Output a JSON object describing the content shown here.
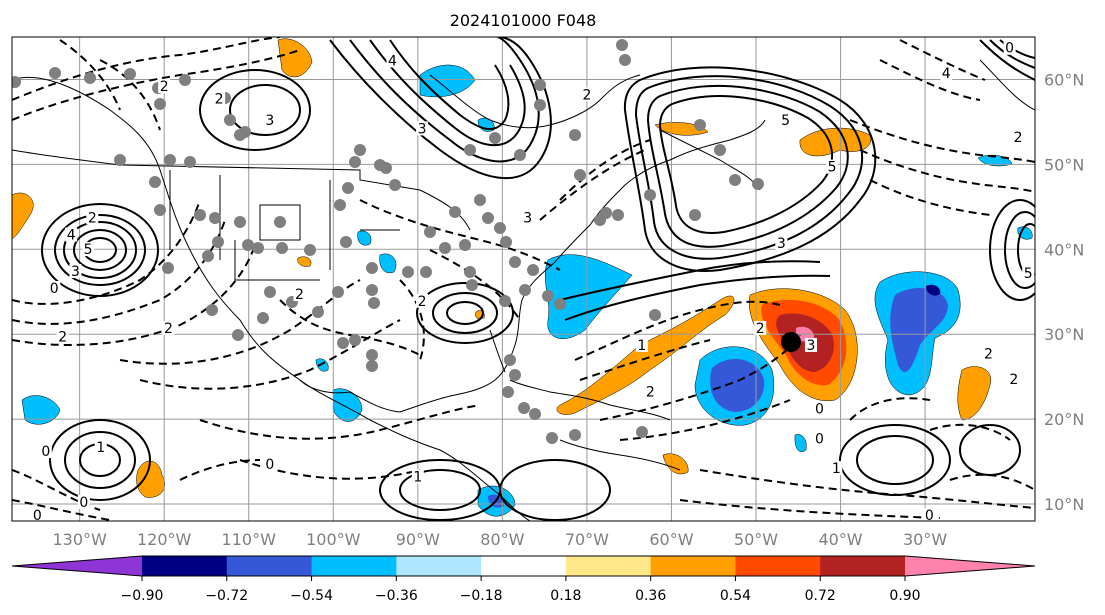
{
  "title": "2024101000 F048",
  "map": {
    "projection": "PlateCarree",
    "lon_range": [
      -138,
      -17
    ],
    "lat_range": [
      8,
      65
    ],
    "lon_ticks": [
      {
        "value": -130,
        "label": "130°W"
      },
      {
        "value": -120,
        "label": "120°W"
      },
      {
        "value": -110,
        "label": "110°W"
      },
      {
        "value": -100,
        "label": "100°W"
      },
      {
        "value": -90,
        "label": "90°W"
      },
      {
        "value": -80,
        "label": "80°W"
      },
      {
        "value": -70,
        "label": "70°W"
      },
      {
        "value": -60,
        "label": "60°W"
      },
      {
        "value": -50,
        "label": "50°W"
      },
      {
        "value": -40,
        "label": "40°W"
      },
      {
        "value": -30,
        "label": "30°W"
      }
    ],
    "lat_ticks": [
      {
        "value": 60,
        "label": "60°N"
      },
      {
        "value": 50,
        "label": "50°N"
      },
      {
        "value": 40,
        "label": "40°N"
      },
      {
        "value": 30,
        "label": "30°N"
      },
      {
        "value": 20,
        "label": "20°N"
      },
      {
        "value": 10,
        "label": "10°N"
      }
    ],
    "gridlines": true,
    "contour_labels": [
      {
        "text": "2",
        "lon": -120,
        "lat": 59
      },
      {
        "text": "2",
        "lon": -128.5,
        "lat": 43.5
      },
      {
        "text": "4",
        "lon": -131,
        "lat": 41.5
      },
      {
        "text": "5",
        "lon": -129,
        "lat": 39.8
      },
      {
        "text": "3",
        "lon": -130.5,
        "lat": 37.2
      },
      {
        "text": "0",
        "lon": -133,
        "lat": 35.2
      },
      {
        "text": "2",
        "lon": -119.5,
        "lat": 30.5
      },
      {
        "text": "2",
        "lon": -132,
        "lat": 29.5
      },
      {
        "text": "3",
        "lon": -107.5,
        "lat": 55
      },
      {
        "text": "2",
        "lon": -113.5,
        "lat": 57.5
      },
      {
        "text": "3",
        "lon": -89.5,
        "lat": 54
      },
      {
        "text": "4",
        "lon": -93,
        "lat": 62
      },
      {
        "text": "2",
        "lon": -89.5,
        "lat": 33.7
      },
      {
        "text": "3",
        "lon": -77,
        "lat": 43.5
      },
      {
        "text": "2",
        "lon": -70,
        "lat": 58
      },
      {
        "text": "5",
        "lon": -46.5,
        "lat": 55
      },
      {
        "text": "3",
        "lon": -47,
        "lat": 40.5
      },
      {
        "text": "5",
        "lon": -41,
        "lat": 49.5
      },
      {
        "text": "1",
        "lon": -63.5,
        "lat": 28.5
      },
      {
        "text": "2",
        "lon": -62.5,
        "lat": 23
      },
      {
        "text": "2",
        "lon": -49.5,
        "lat": 30.5
      },
      {
        "text": "3",
        "lon": -43.5,
        "lat": 28.5
      },
      {
        "text": "1",
        "lon": -127.5,
        "lat": 16.5
      },
      {
        "text": "0",
        "lon": -134,
        "lat": 16
      },
      {
        "text": "0",
        "lon": -129.5,
        "lat": 10
      },
      {
        "text": "0",
        "lon": -135,
        "lat": 8.5
      },
      {
        "text": "1",
        "lon": -90,
        "lat": 13
      },
      {
        "text": "0",
        "lon": -107.5,
        "lat": 14.5
      },
      {
        "text": "0",
        "lon": -42.5,
        "lat": 17.5
      },
      {
        "text": "1",
        "lon": -40.5,
        "lat": 14
      },
      {
        "text": "0",
        "lon": -42.5,
        "lat": 21
      },
      {
        "text": "0",
        "lon": -29.5,
        "lat": 8.5
      },
      {
        "text": "2",
        "lon": -22.5,
        "lat": 27.5
      },
      {
        "text": "2",
        "lon": -19.5,
        "lat": 24.5
      },
      {
        "text": "0",
        "lon": -20,
        "lat": 63.5
      },
      {
        "text": "4",
        "lon": -27.5,
        "lat": 60.5
      },
      {
        "text": "2",
        "lon": -19,
        "lat": 53
      },
      {
        "text": "5",
        "lon": -17.8,
        "lat": 37
      },
      {
        "text": "2",
        "lon": -104,
        "lat": 34.5
      }
    ]
  },
  "colorbar": {
    "tick_labels": [
      "−0.90",
      "−0.72",
      "−0.54",
      "−0.36",
      "−0.18",
      "0.18",
      "0.36",
      "0.54",
      "0.72",
      "0.90"
    ],
    "bin_colors": [
      "#8e35d6",
      "#000083",
      "#3458d8",
      "#00bfff",
      "#aee6ff",
      "#ffffff",
      "#ffe88a",
      "#ffa000",
      "#ff4a00",
      "#b22222",
      "#ff82ad"
    ],
    "extend": "both"
  },
  "colors": {
    "grid": "#9a9a9a",
    "coast": "#000000",
    "station": "#7f7f7f",
    "tick_label": "#7f7f7f"
  }
}
